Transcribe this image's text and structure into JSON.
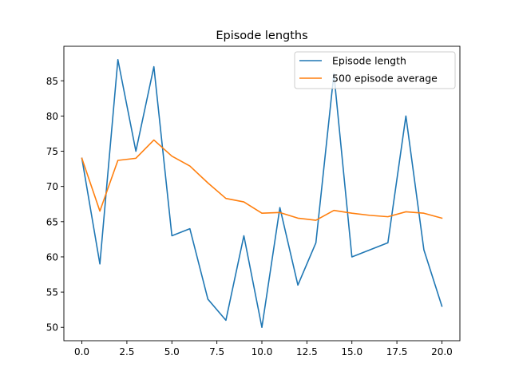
{
  "chart_data": {
    "type": "line",
    "title": "Episode lengths",
    "xlabel": "",
    "ylabel": "",
    "xlim": [
      -1,
      21
    ],
    "ylim": [
      48.1,
      89.9
    ],
    "x_ticks": [
      0.0,
      2.5,
      5.0,
      7.5,
      10.0,
      12.5,
      15.0,
      17.5,
      20.0
    ],
    "x_tick_labels": [
      "0.0",
      "2.5",
      "5.0",
      "7.5",
      "10.0",
      "12.5",
      "15.0",
      "17.5",
      "20.0"
    ],
    "y_ticks": [
      50,
      55,
      60,
      65,
      70,
      75,
      80,
      85
    ],
    "y_tick_labels": [
      "50",
      "55",
      "60",
      "65",
      "70",
      "75",
      "80",
      "85"
    ],
    "grid": false,
    "legend_position": "top-right",
    "x": [
      0,
      1,
      2,
      3,
      4,
      5,
      6,
      7,
      8,
      9,
      10,
      11,
      12,
      13,
      14,
      15,
      16,
      17,
      18,
      19,
      20
    ],
    "series": [
      {
        "name": "Episode length",
        "color": "#1f77b4",
        "values": [
          74,
          59,
          88,
          75,
          87,
          63,
          64,
          54,
          51,
          63,
          50,
          67,
          56,
          62,
          86,
          60,
          61,
          62,
          80,
          61,
          53
        ]
      },
      {
        "name": "500 episode average",
        "color": "#ff7f0e",
        "values": [
          74.0,
          66.5,
          73.7,
          74.0,
          76.6,
          74.3,
          72.9,
          70.5,
          68.3,
          67.8,
          66.2,
          66.3,
          65.5,
          65.2,
          66.6,
          66.2,
          65.9,
          65.7,
          66.4,
          66.2,
          65.5
        ]
      }
    ]
  }
}
